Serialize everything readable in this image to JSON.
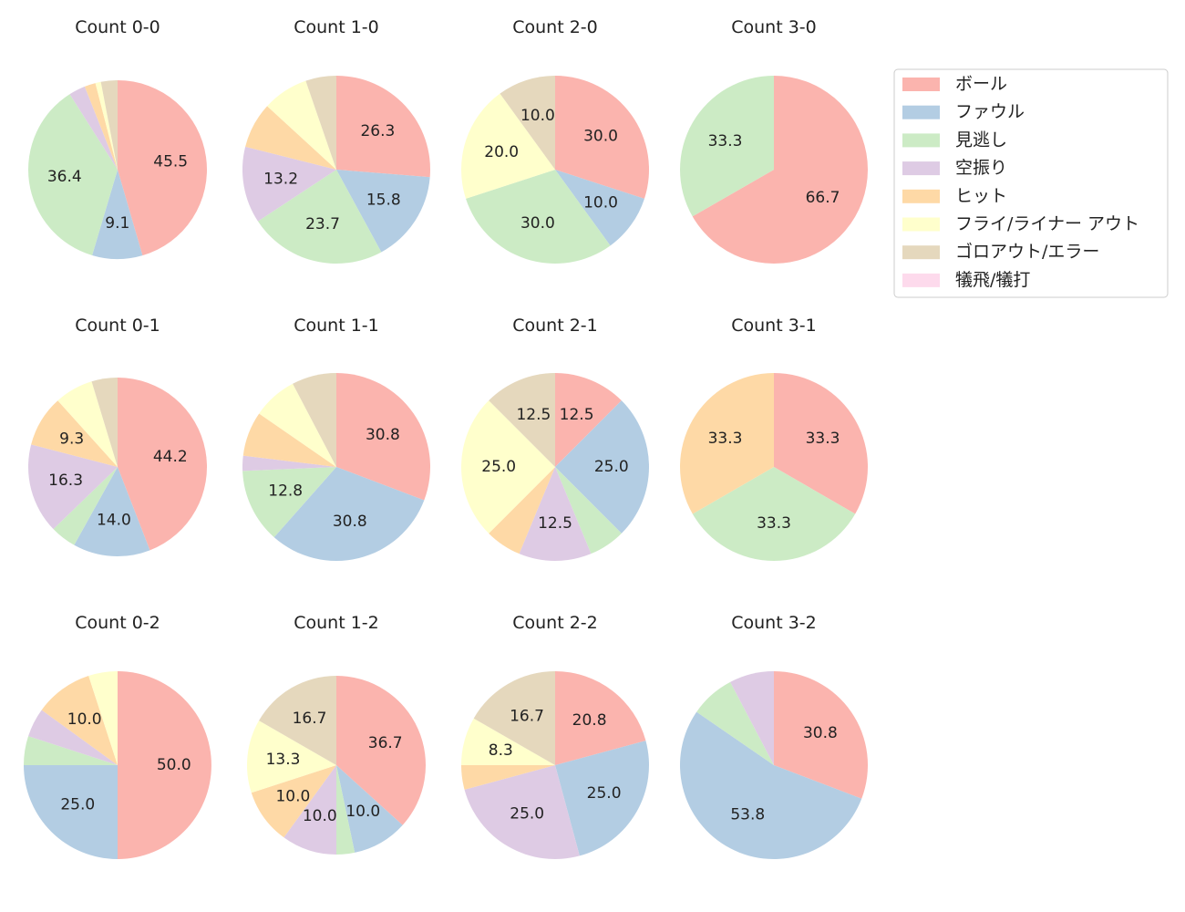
{
  "legend": [
    {
      "label": "ボール",
      "color": "#fbb4ae"
    },
    {
      "label": "ファウル",
      "color": "#b3cde3"
    },
    {
      "label": "見逃し",
      "color": "#ccebc5"
    },
    {
      "label": "空振り",
      "color": "#decbe4"
    },
    {
      "label": "ヒット",
      "color": "#fed9a6"
    },
    {
      "label": "フライ/ライナー アウト",
      "color": "#ffffcc"
    },
    {
      "label": "ゴロアウト/エラー",
      "color": "#e5d8bd"
    },
    {
      "label": "犠飛/犠打",
      "color": "#fddaec"
    }
  ],
  "chart_data": [
    {
      "type": "pie",
      "title": "Count 0-0",
      "values": [
        45.5,
        9.1,
        36.4,
        3.0,
        2.0,
        1.0,
        3.0,
        0
      ],
      "labels": [
        "45.5",
        "9.1",
        "36.4",
        "",
        "",
        "",
        "",
        ""
      ]
    },
    {
      "type": "pie",
      "title": "Count 1-0",
      "values": [
        26.3,
        15.8,
        23.7,
        13.2,
        7.9,
        7.9,
        5.3,
        0
      ],
      "labels": [
        "26.3",
        "15.8",
        "23.7",
        "13.2",
        "",
        "",
        "",
        ""
      ]
    },
    {
      "type": "pie",
      "title": "Count 2-0",
      "values": [
        30.0,
        10.0,
        30.0,
        0,
        0,
        20.0,
        10.0,
        0
      ],
      "labels": [
        "30.0",
        "10.0",
        "30.0",
        "",
        "",
        "20.0",
        "10.0",
        ""
      ]
    },
    {
      "type": "pie",
      "title": "Count 3-0",
      "values": [
        66.7,
        0,
        33.3,
        0,
        0,
        0,
        0,
        0
      ],
      "labels": [
        "66.7",
        "",
        "33.3",
        "",
        "",
        "",
        "",
        ""
      ]
    },
    {
      "type": "pie",
      "title": "Count 0-1",
      "values": [
        44.2,
        14.0,
        4.7,
        16.3,
        9.3,
        7.0,
        4.7,
        0
      ],
      "labels": [
        "44.2",
        "14.0",
        "",
        "16.3",
        "9.3",
        "",
        "",
        ""
      ]
    },
    {
      "type": "pie",
      "title": "Count 1-1",
      "values": [
        30.8,
        30.8,
        12.8,
        2.6,
        7.7,
        7.7,
        7.7,
        0
      ],
      "labels": [
        "30.8",
        "30.8",
        "12.8",
        "",
        "",
        "",
        "",
        ""
      ]
    },
    {
      "type": "pie",
      "title": "Count 2-1",
      "values": [
        12.5,
        25.0,
        6.25,
        12.5,
        6.25,
        25.0,
        12.5,
        0
      ],
      "labels": [
        "12.5",
        "25.0",
        "",
        "12.5",
        "",
        "25.0",
        "12.5",
        ""
      ]
    },
    {
      "type": "pie",
      "title": "Count 3-1",
      "values": [
        33.3,
        0,
        33.3,
        0,
        33.3,
        0,
        0,
        0
      ],
      "labels": [
        "33.3",
        "",
        "33.3",
        "",
        "33.3",
        "",
        "",
        ""
      ]
    },
    {
      "type": "pie",
      "title": "Count 0-2",
      "values": [
        50.0,
        25.0,
        5.0,
        5.0,
        10.0,
        5.0,
        0,
        0
      ],
      "labels": [
        "50.0",
        "25.0",
        "",
        "",
        "10.0",
        "",
        "",
        ""
      ]
    },
    {
      "type": "pie",
      "title": "Count 1-2",
      "values": [
        36.7,
        10.0,
        3.3,
        10.0,
        10.0,
        13.3,
        16.7,
        0
      ],
      "labels": [
        "36.7",
        "10.0",
        "",
        "10.0",
        "10.0",
        "13.3",
        "16.7",
        ""
      ]
    },
    {
      "type": "pie",
      "title": "Count 2-2",
      "values": [
        20.8,
        25.0,
        0,
        25.0,
        4.2,
        8.3,
        16.7,
        0
      ],
      "labels": [
        "20.8",
        "25.0",
        "",
        "25.0",
        "",
        "8.3",
        "16.7",
        ""
      ]
    },
    {
      "type": "pie",
      "title": "Count 3-2",
      "values": [
        30.8,
        53.8,
        7.7,
        7.7,
        0,
        0,
        0,
        0
      ],
      "labels": [
        "30.8",
        "53.8",
        "",
        "",
        "",
        "",
        "",
        ""
      ]
    }
  ]
}
